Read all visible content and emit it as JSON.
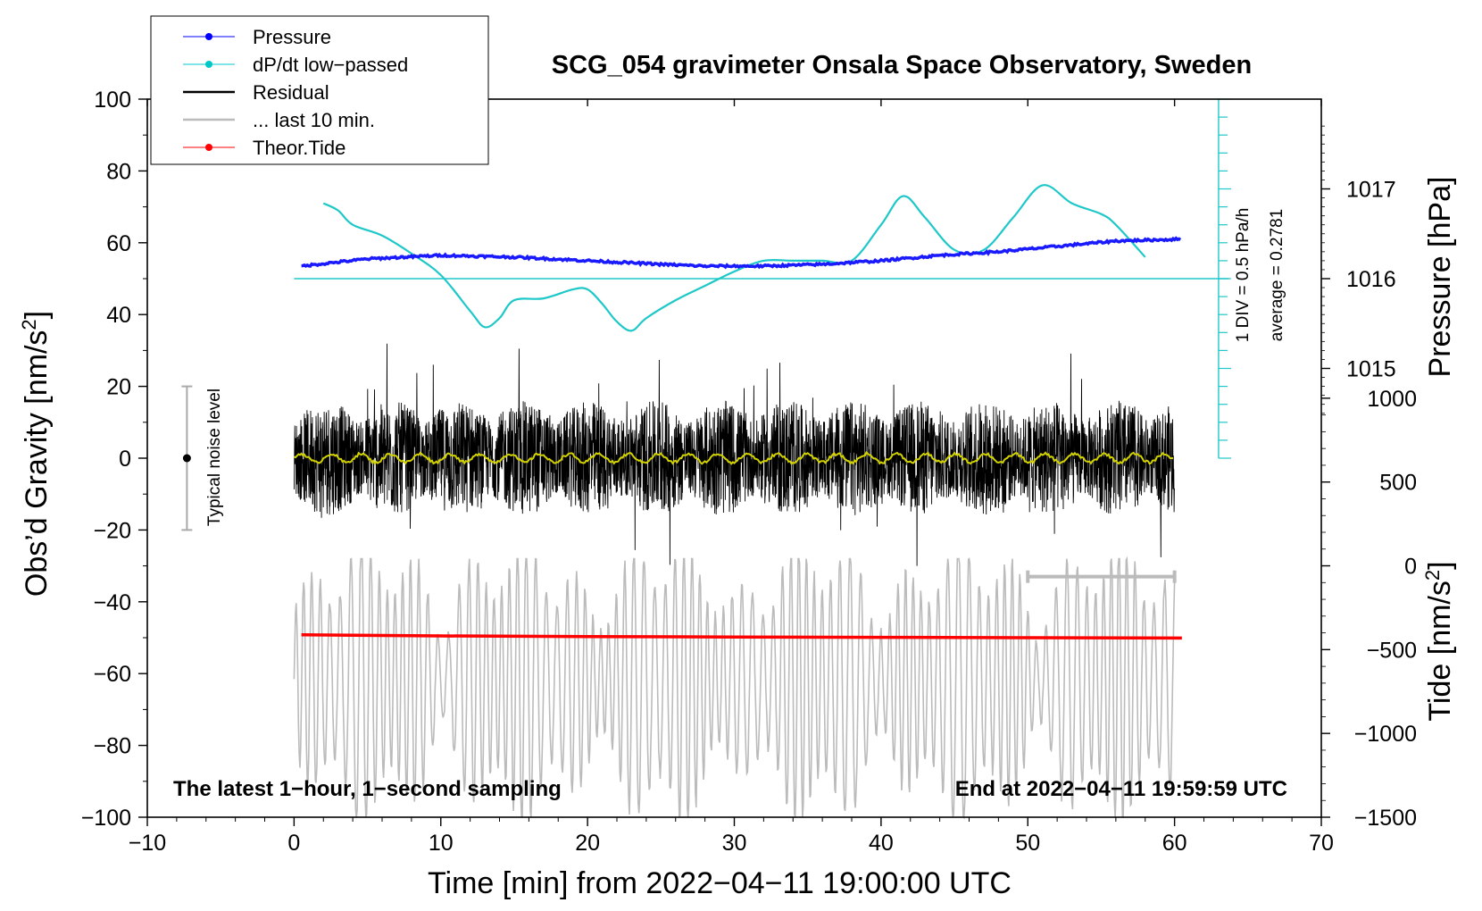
{
  "chart_data": {
    "type": "line",
    "title": "SCG_054 gravimeter Onsala Space Observatory, Sweden",
    "xlabel": "Time [min] from 2022−04−11 19:00:00 UTC",
    "ylabel_main": "Obs’d Gravity [nm/s",
    "ylabel_main_sup": "2",
    "ylabel_main_end": "]",
    "ylabel_pressure": "Pressure [hPa]",
    "ylabel_tide": "Tide [nm/s",
    "ylabel_tide_sup": "2",
    "ylabel_tide_end": "]",
    "xlim": [
      -10,
      70
    ],
    "ylim": [
      -100,
      100
    ],
    "x_ticks": [
      -10,
      0,
      10,
      20,
      30,
      40,
      50,
      60,
      70
    ],
    "x_tick_labels": [
      "−10",
      "0",
      "10",
      "20",
      "30",
      "40",
      "50",
      "60",
      "70"
    ],
    "y_ticks": [
      -100,
      -80,
      -60,
      -40,
      -20,
      0,
      20,
      40,
      60,
      80,
      100
    ],
    "y_tick_labels": [
      "−100",
      "−80",
      "−60",
      "−40",
      "−20",
      "0",
      "20",
      "40",
      "60",
      "80",
      "100"
    ],
    "pressure_ticks": [
      1015,
      1016,
      1017
    ],
    "pressure_tick_labels": [
      "1015",
      "1016",
      "1017"
    ],
    "pressure_axis_map": {
      "1016": 50,
      "1017": 75
    },
    "tide_ticks": [
      -1500,
      -1000,
      -500,
      0,
      500,
      1000
    ],
    "tide_tick_labels": [
      "−1500",
      "−1000",
      "−500",
      "0",
      "500",
      "1000"
    ],
    "tide_axis_map": {
      "-1500": -100,
      "1000": 16.7
    },
    "annotations": {
      "left_bottom": "The latest 1−hour, 1−second sampling",
      "right_bottom": "End at 2022−04−11 19:59:59 UTC",
      "noise_label": "Typical noise level",
      "div_label": "1 DIV = 0.5 hPa/h",
      "average_label": "average = 0.2781"
    },
    "noise_bar": {
      "x": -7.3,
      "y_center": 0,
      "y_range": [
        -20,
        20
      ]
    },
    "ten_min_bracket": {
      "x_range": [
        50,
        60
      ],
      "y": -33
    },
    "dpdt_zero_line": {
      "x_range": [
        0,
        63
      ],
      "y": 50
    },
    "dpdt_scale_axis": {
      "x": 63,
      "y_range": [
        0,
        100
      ],
      "tick_step": 5
    },
    "legend": [
      {
        "label": "Pressure",
        "color": "#0000ff",
        "marker": true
      },
      {
        "label": "dP/dt low−passed",
        "color": "#00c8c8",
        "marker": true
      },
      {
        "label": "Residual",
        "color": "#000000",
        "marker": false
      },
      {
        "label": "... last 10 min.",
        "color": "#bbbbbb",
        "marker": false
      },
      {
        "label": "Theor.Tide",
        "color": "#ff0000",
        "marker": true
      }
    ],
    "series": [
      {
        "name": "Pressure",
        "color": "#1a1aff",
        "x": [
          0.5,
          5,
          10,
          15,
          20,
          25,
          28,
          32,
          36,
          40,
          44,
          48,
          52,
          56,
          60.5
        ],
        "y": [
          53.5,
          55.5,
          56.5,
          56,
          55,
          54,
          53.5,
          53.5,
          54,
          55,
          56.5,
          57.5,
          59,
          60.5,
          61
        ]
      },
      {
        "name": "dP/dt low−passed",
        "color": "#1ec8c8",
        "x": [
          2,
          3,
          4,
          6,
          8,
          10,
          12,
          13,
          14,
          15,
          17,
          19,
          20,
          21,
          22,
          23,
          24,
          26,
          28,
          30,
          32,
          34,
          36,
          38,
          40,
          41.5,
          43,
          45,
          47,
          49,
          51,
          53,
          55,
          56,
          58
        ],
        "y": [
          71,
          69,
          65,
          62,
          57,
          51,
          41,
          36.5,
          39,
          44,
          44.5,
          47,
          47,
          43,
          38,
          35.5,
          39,
          44,
          48,
          52,
          55,
          55,
          55,
          55,
          65,
          73,
          67,
          58,
          58,
          67,
          76,
          71,
          68,
          65,
          56
        ]
      },
      {
        "name": "Residual",
        "color": "#000000",
        "x_range": [
          0,
          60
        ],
        "envelope": [
          -30,
          35
        ],
        "note": "1-second sampled noise, amplitude ~±25 nm/s2 with spikes"
      },
      {
        "name": "Residual smoothed",
        "color": "#d2d200",
        "x_range": [
          0,
          60
        ],
        "envelope": [
          -2,
          2
        ]
      },
      {
        "name": "... last 10 min.",
        "color": "#bbbbbb",
        "x_range": [
          0,
          60
        ],
        "y_center": -62,
        "envelope": [
          -100,
          -28
        ]
      },
      {
        "name": "Theor.Tide",
        "color": "#ff0000",
        "x": [
          0.5,
          10,
          20,
          30,
          40,
          50,
          60.5
        ],
        "y": [
          -49.2,
          -49.5,
          -49.7,
          -49.8,
          -49.9,
          -50,
          -50.1
        ]
      }
    ]
  }
}
